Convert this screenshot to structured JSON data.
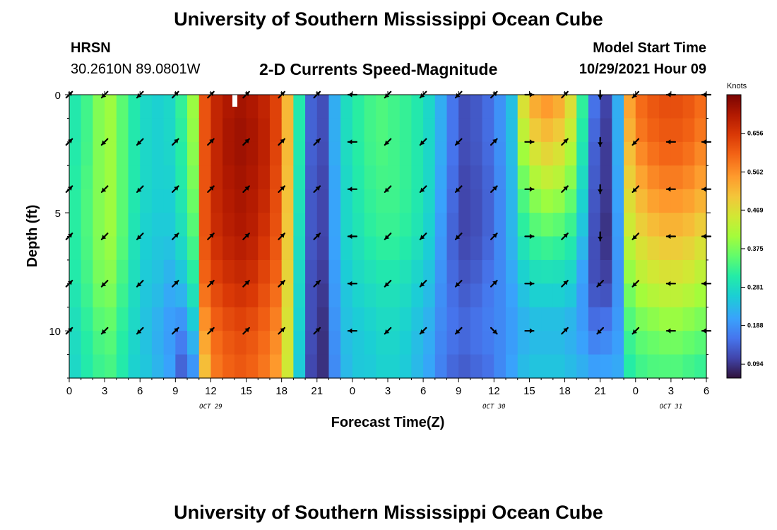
{
  "header": {
    "title_top": "University of Southern Mississippi Ocean Cube",
    "station": "HRSN",
    "coords": "30.2610N  89.0801W",
    "plot_title": "2-D Currents Speed-Magnitude",
    "model_label": "Model Start Time",
    "model_time": "10/29/2021 Hour 09",
    "title_bottom": "University of Southern Mississippi Ocean Cube"
  },
  "colorbar": {
    "units": "Knots",
    "ticks": [
      "0.656",
      "0.562",
      "0.469",
      "0.375",
      "0.281",
      "0.188",
      "0.094"
    ],
    "tick_values": [
      0.656,
      0.562,
      0.469,
      0.375,
      0.281,
      0.188,
      0.094
    ],
    "min": 0.06,
    "max": 0.75
  },
  "chart_data": {
    "type": "heatmap",
    "title": "2-D Currents Speed-Magnitude",
    "xlabel": "Forecast Time(Z)",
    "ylabel": "Depth (ft)",
    "xlim": [
      0,
      54
    ],
    "ylim": [
      12,
      0
    ],
    "x_tick_values": [
      0,
      3,
      6,
      9,
      12,
      15,
      18,
      21,
      24,
      27,
      30,
      33,
      36,
      39,
      42,
      45,
      48,
      51,
      54
    ],
    "x_tick_labels": [
      "0",
      "3",
      "6",
      "9",
      "12",
      "15",
      "18",
      "21",
      "0",
      "3",
      "6",
      "9",
      "12",
      "15",
      "18",
      "21",
      "0",
      "3",
      "6"
    ],
    "y_tick_values": [
      0,
      5,
      10
    ],
    "y_tick_labels": [
      "0",
      "5",
      "10"
    ],
    "date_labels": [
      {
        "label": "OCT 29",
        "x": 12
      },
      {
        "label": "OCT 30",
        "x": 36
      },
      {
        "label": "OCT 31",
        "x": 51
      }
    ],
    "units": "Knots",
    "speed_profiles": [
      {
        "t": 0,
        "speeds": [
          0.3,
          0.3,
          0.31,
          0.31,
          0.3,
          0.28,
          0.27
        ]
      },
      {
        "t": 1,
        "speeds": [
          0.33,
          0.33,
          0.34,
          0.34,
          0.33,
          0.31,
          0.3
        ]
      },
      {
        "t": 2,
        "speeds": [
          0.38,
          0.38,
          0.38,
          0.38,
          0.37,
          0.34,
          0.32
        ]
      },
      {
        "t": 3,
        "speeds": [
          0.4,
          0.4,
          0.4,
          0.4,
          0.38,
          0.35,
          0.33
        ]
      },
      {
        "t": 4,
        "speeds": [
          0.35,
          0.35,
          0.35,
          0.35,
          0.33,
          0.31,
          0.3
        ]
      },
      {
        "t": 5,
        "speeds": [
          0.3,
          0.3,
          0.3,
          0.29,
          0.28,
          0.27,
          0.26
        ]
      },
      {
        "t": 6,
        "speeds": [
          0.27,
          0.27,
          0.27,
          0.26,
          0.25,
          0.24,
          0.25
        ]
      },
      {
        "t": 7,
        "speeds": [
          0.26,
          0.26,
          0.26,
          0.25,
          0.24,
          0.22,
          0.23
        ]
      },
      {
        "t": 8,
        "speeds": [
          0.27,
          0.27,
          0.26,
          0.25,
          0.22,
          0.2,
          0.21
        ]
      },
      {
        "t": 9,
        "speeds": [
          0.32,
          0.31,
          0.3,
          0.28,
          0.24,
          0.18,
          0.13
        ]
      },
      {
        "t": 10,
        "speeds": [
          0.4,
          0.39,
          0.37,
          0.34,
          0.3,
          0.24,
          0.18
        ]
      },
      {
        "t": 11,
        "speeds": [
          0.62,
          0.62,
          0.62,
          0.62,
          0.6,
          0.55,
          0.5
        ]
      },
      {
        "t": 12,
        "speeds": [
          0.68,
          0.68,
          0.68,
          0.67,
          0.64,
          0.6,
          0.58
        ]
      },
      {
        "t": 13,
        "speeds": [
          0.7,
          0.71,
          0.7,
          0.69,
          0.66,
          0.62,
          0.6
        ]
      },
      {
        "t": 14,
        "speeds": [
          0.71,
          0.72,
          0.71,
          0.7,
          0.67,
          0.63,
          0.61
        ]
      },
      {
        "t": 15,
        "speeds": [
          0.7,
          0.71,
          0.7,
          0.69,
          0.66,
          0.62,
          0.6
        ]
      },
      {
        "t": 16,
        "speeds": [
          0.68,
          0.69,
          0.68,
          0.66,
          0.63,
          0.6,
          0.58
        ]
      },
      {
        "t": 17,
        "speeds": [
          0.64,
          0.64,
          0.63,
          0.62,
          0.6,
          0.57,
          0.55
        ]
      },
      {
        "t": 18,
        "speeds": [
          0.52,
          0.52,
          0.51,
          0.5,
          0.48,
          0.46,
          0.45
        ]
      },
      {
        "t": 19,
        "speeds": [
          0.3,
          0.3,
          0.29,
          0.28,
          0.27,
          0.26,
          0.25
        ]
      },
      {
        "t": 20,
        "speeds": [
          0.14,
          0.14,
          0.13,
          0.13,
          0.12,
          0.12,
          0.11
        ]
      },
      {
        "t": 21,
        "speeds": [
          0.12,
          0.12,
          0.11,
          0.11,
          0.1,
          0.09,
          0.09
        ]
      },
      {
        "t": 22,
        "speeds": [
          0.22,
          0.22,
          0.21,
          0.21,
          0.2,
          0.19,
          0.18
        ]
      },
      {
        "t": 23,
        "speeds": [
          0.28,
          0.28,
          0.27,
          0.27,
          0.25,
          0.24,
          0.23
        ]
      },
      {
        "t": 24,
        "speeds": [
          0.31,
          0.31,
          0.3,
          0.29,
          0.27,
          0.25,
          0.25
        ]
      },
      {
        "t": 25,
        "speeds": [
          0.33,
          0.33,
          0.32,
          0.31,
          0.28,
          0.26,
          0.25
        ]
      },
      {
        "t": 26,
        "speeds": [
          0.34,
          0.34,
          0.33,
          0.32,
          0.29,
          0.27,
          0.26
        ]
      },
      {
        "t": 27,
        "speeds": [
          0.33,
          0.33,
          0.33,
          0.32,
          0.29,
          0.27,
          0.26
        ]
      },
      {
        "t": 28,
        "speeds": [
          0.32,
          0.32,
          0.32,
          0.31,
          0.28,
          0.26,
          0.25
        ]
      },
      {
        "t": 29,
        "speeds": [
          0.3,
          0.3,
          0.3,
          0.29,
          0.26,
          0.24,
          0.23
        ]
      },
      {
        "t": 30,
        "speeds": [
          0.27,
          0.27,
          0.27,
          0.26,
          0.24,
          0.22,
          0.21
        ]
      },
      {
        "t": 31,
        "speeds": [
          0.22,
          0.22,
          0.21,
          0.2,
          0.19,
          0.18,
          0.17
        ]
      },
      {
        "t": 32,
        "speeds": [
          0.16,
          0.16,
          0.15,
          0.14,
          0.15,
          0.16,
          0.14
        ]
      },
      {
        "t": 33,
        "speeds": [
          0.12,
          0.12,
          0.11,
          0.11,
          0.13,
          0.15,
          0.13
        ]
      },
      {
        "t": 34,
        "speeds": [
          0.13,
          0.13,
          0.12,
          0.12,
          0.14,
          0.16,
          0.14
        ]
      },
      {
        "t": 35,
        "speeds": [
          0.15,
          0.15,
          0.14,
          0.14,
          0.16,
          0.17,
          0.15
        ]
      },
      {
        "t": 36,
        "speeds": [
          0.19,
          0.19,
          0.18,
          0.18,
          0.18,
          0.18,
          0.18
        ]
      },
      {
        "t": 37,
        "speeds": [
          0.24,
          0.24,
          0.23,
          0.23,
          0.21,
          0.2,
          0.21
        ]
      },
      {
        "t": 38,
        "speeds": [
          0.48,
          0.42,
          0.35,
          0.3,
          0.25,
          0.22,
          0.24
        ]
      },
      {
        "t": 39,
        "speeds": [
          0.55,
          0.48,
          0.4,
          0.33,
          0.27,
          0.23,
          0.25
        ]
      },
      {
        "t": 40,
        "speeds": [
          0.57,
          0.5,
          0.42,
          0.34,
          0.27,
          0.23,
          0.25
        ]
      },
      {
        "t": 41,
        "speeds": [
          0.55,
          0.48,
          0.41,
          0.33,
          0.27,
          0.23,
          0.25
        ]
      },
      {
        "t": 42,
        "speeds": [
          0.48,
          0.43,
          0.37,
          0.31,
          0.26,
          0.22,
          0.24
        ]
      },
      {
        "t": 43,
        "speeds": [
          0.32,
          0.3,
          0.27,
          0.24,
          0.2,
          0.2,
          0.23
        ]
      },
      {
        "t": 44,
        "speeds": [
          0.16,
          0.14,
          0.13,
          0.12,
          0.12,
          0.16,
          0.22
        ]
      },
      {
        "t": 45,
        "speeds": [
          0.11,
          0.1,
          0.1,
          0.09,
          0.11,
          0.17,
          0.22
        ]
      },
      {
        "t": 46,
        "speeds": [
          0.22,
          0.22,
          0.21,
          0.2,
          0.19,
          0.2,
          0.22
        ]
      },
      {
        "t": 47,
        "speeds": [
          0.55,
          0.52,
          0.48,
          0.44,
          0.38,
          0.33,
          0.3
        ]
      },
      {
        "t": 48,
        "speeds": [
          0.6,
          0.58,
          0.53,
          0.48,
          0.42,
          0.36,
          0.32
        ]
      },
      {
        "t": 49,
        "speeds": [
          0.62,
          0.6,
          0.56,
          0.5,
          0.44,
          0.37,
          0.33
        ]
      },
      {
        "t": 50,
        "speeds": [
          0.63,
          0.61,
          0.57,
          0.51,
          0.45,
          0.38,
          0.33
        ]
      },
      {
        "t": 51,
        "speeds": [
          0.63,
          0.61,
          0.57,
          0.51,
          0.45,
          0.38,
          0.33
        ]
      },
      {
        "t": 52,
        "speeds": [
          0.62,
          0.6,
          0.56,
          0.5,
          0.44,
          0.37,
          0.32
        ]
      },
      {
        "t": 53,
        "speeds": [
          0.6,
          0.58,
          0.54,
          0.48,
          0.42,
          0.36,
          0.31
        ]
      }
    ],
    "profile_depths": [
      0,
      2,
      4,
      6,
      8,
      10,
      12
    ],
    "vectors": {
      "times": [
        0,
        3,
        6,
        9,
        12,
        15,
        18,
        21,
        24,
        27,
        30,
        33,
        36,
        39,
        42,
        45,
        48,
        51,
        54
      ],
      "depths": [
        0,
        2,
        4,
        6,
        8,
        10
      ],
      "direction_deg_by_time": [
        45,
        225,
        225,
        45,
        45,
        45,
        45,
        45,
        270,
        225,
        225,
        225,
        45,
        90,
        45,
        180,
        225,
        270,
        270
      ],
      "directions_override": [
        {
          "t": 36,
          "d": 10,
          "deg": 135
        },
        {
          "t": 39,
          "d": 6,
          "deg": 90
        },
        {
          "t": 42,
          "d": 8,
          "deg": 45
        },
        {
          "t": 45,
          "d": 8,
          "deg": 225
        },
        {
          "t": 45,
          "d": 10,
          "deg": 225
        }
      ]
    }
  }
}
